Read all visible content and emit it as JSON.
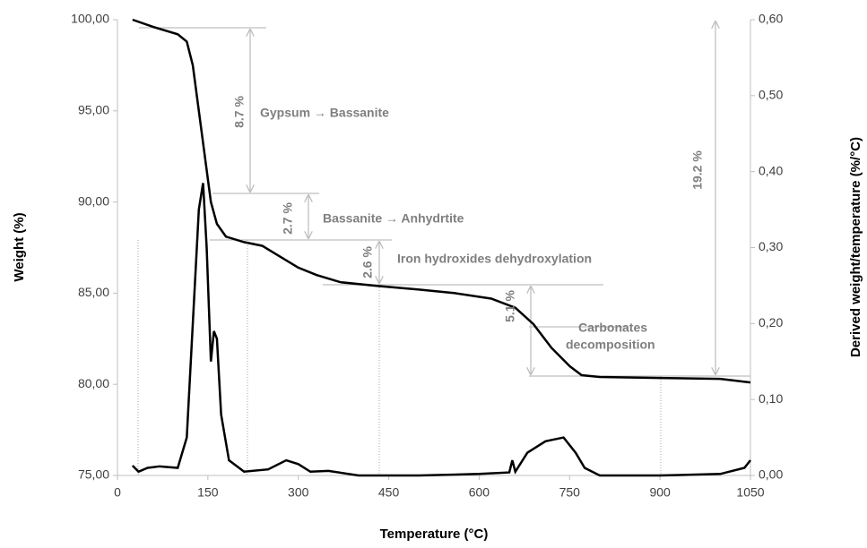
{
  "chart_data": {
    "type": "line",
    "xlabel": "Temperature (°C)",
    "ylabel": "Weight (%)",
    "y2label": "Derived weight/temperature (%/°C)",
    "xlim": [
      0,
      1050
    ],
    "xticks": [
      0,
      150,
      300,
      450,
      600,
      750,
      900,
      1050
    ],
    "ylim": [
      75,
      100
    ],
    "yticks": [
      {
        "value": 75,
        "label": "75,00"
      },
      {
        "value": 80,
        "label": "80,00"
      },
      {
        "value": 85,
        "label": "85,00"
      },
      {
        "value": 90,
        "label": "90,00"
      },
      {
        "value": 95,
        "label": "95,00"
      },
      {
        "value": 100,
        "label": "100,00"
      }
    ],
    "y2lim": [
      0,
      0.6
    ],
    "y2ticks": [
      {
        "value": 0,
        "label": "0,00"
      },
      {
        "value": 0.1,
        "label": "0,10"
      },
      {
        "value": 0.2,
        "label": "0,20"
      },
      {
        "value": 0.3,
        "label": "0,30"
      },
      {
        "value": 0.4,
        "label": "0,40"
      },
      {
        "value": 0.5,
        "label": "0,50"
      },
      {
        "value": 0.6,
        "label": "0,60"
      }
    ],
    "series": [
      {
        "color": "#000000",
        "axis": "y",
        "x": [
          25,
          60,
          100,
          115,
          125,
          135,
          145,
          155,
          165,
          180,
          210,
          240,
          270,
          300,
          330,
          370,
          430,
          500,
          560,
          620,
          660,
          690,
          720,
          750,
          770,
          800,
          900,
          1000,
          1050
        ],
        "values": [
          100.0,
          99.6,
          99.2,
          98.8,
          97.5,
          95.0,
          92.5,
          90.0,
          88.8,
          88.1,
          87.8,
          87.6,
          87.0,
          86.4,
          86.0,
          85.6,
          85.4,
          85.2,
          85.0,
          84.7,
          84.2,
          83.3,
          82.0,
          81.0,
          80.5,
          80.4,
          80.35,
          80.3,
          80.1
        ]
      },
      {
        "color": "#000000",
        "axis": "y2",
        "x": [
          25,
          35,
          50,
          70,
          100,
          115,
          125,
          135,
          142,
          148,
          155,
          160,
          165,
          172,
          185,
          210,
          250,
          280,
          300,
          320,
          350,
          400,
          500,
          600,
          650,
          655,
          660,
          680,
          710,
          740,
          760,
          775,
          800,
          900,
          1000,
          1040,
          1050
        ],
        "values": [
          0.013,
          0.005,
          0.01,
          0.012,
          0.01,
          0.05,
          0.2,
          0.35,
          0.385,
          0.3,
          0.15,
          0.19,
          0.18,
          0.08,
          0.02,
          0.005,
          0.008,
          0.02,
          0.015,
          0.005,
          0.006,
          0.0,
          0.0,
          0.002,
          0.004,
          0.02,
          0.005,
          0.03,
          0.045,
          0.05,
          0.03,
          0.01,
          0.0,
          0.0,
          0.002,
          0.01,
          0.02
        ]
      }
    ],
    "annotations": [
      "8.7 %",
      "Gypsum → Bassanite",
      "2.7 %",
      "Bassanite → Anhydrtite",
      "2.6 %",
      "Iron hydroxides dehydroxylation",
      "5.1 %",
      "Carbonates",
      "decomposition",
      "19.2 %"
    ]
  }
}
